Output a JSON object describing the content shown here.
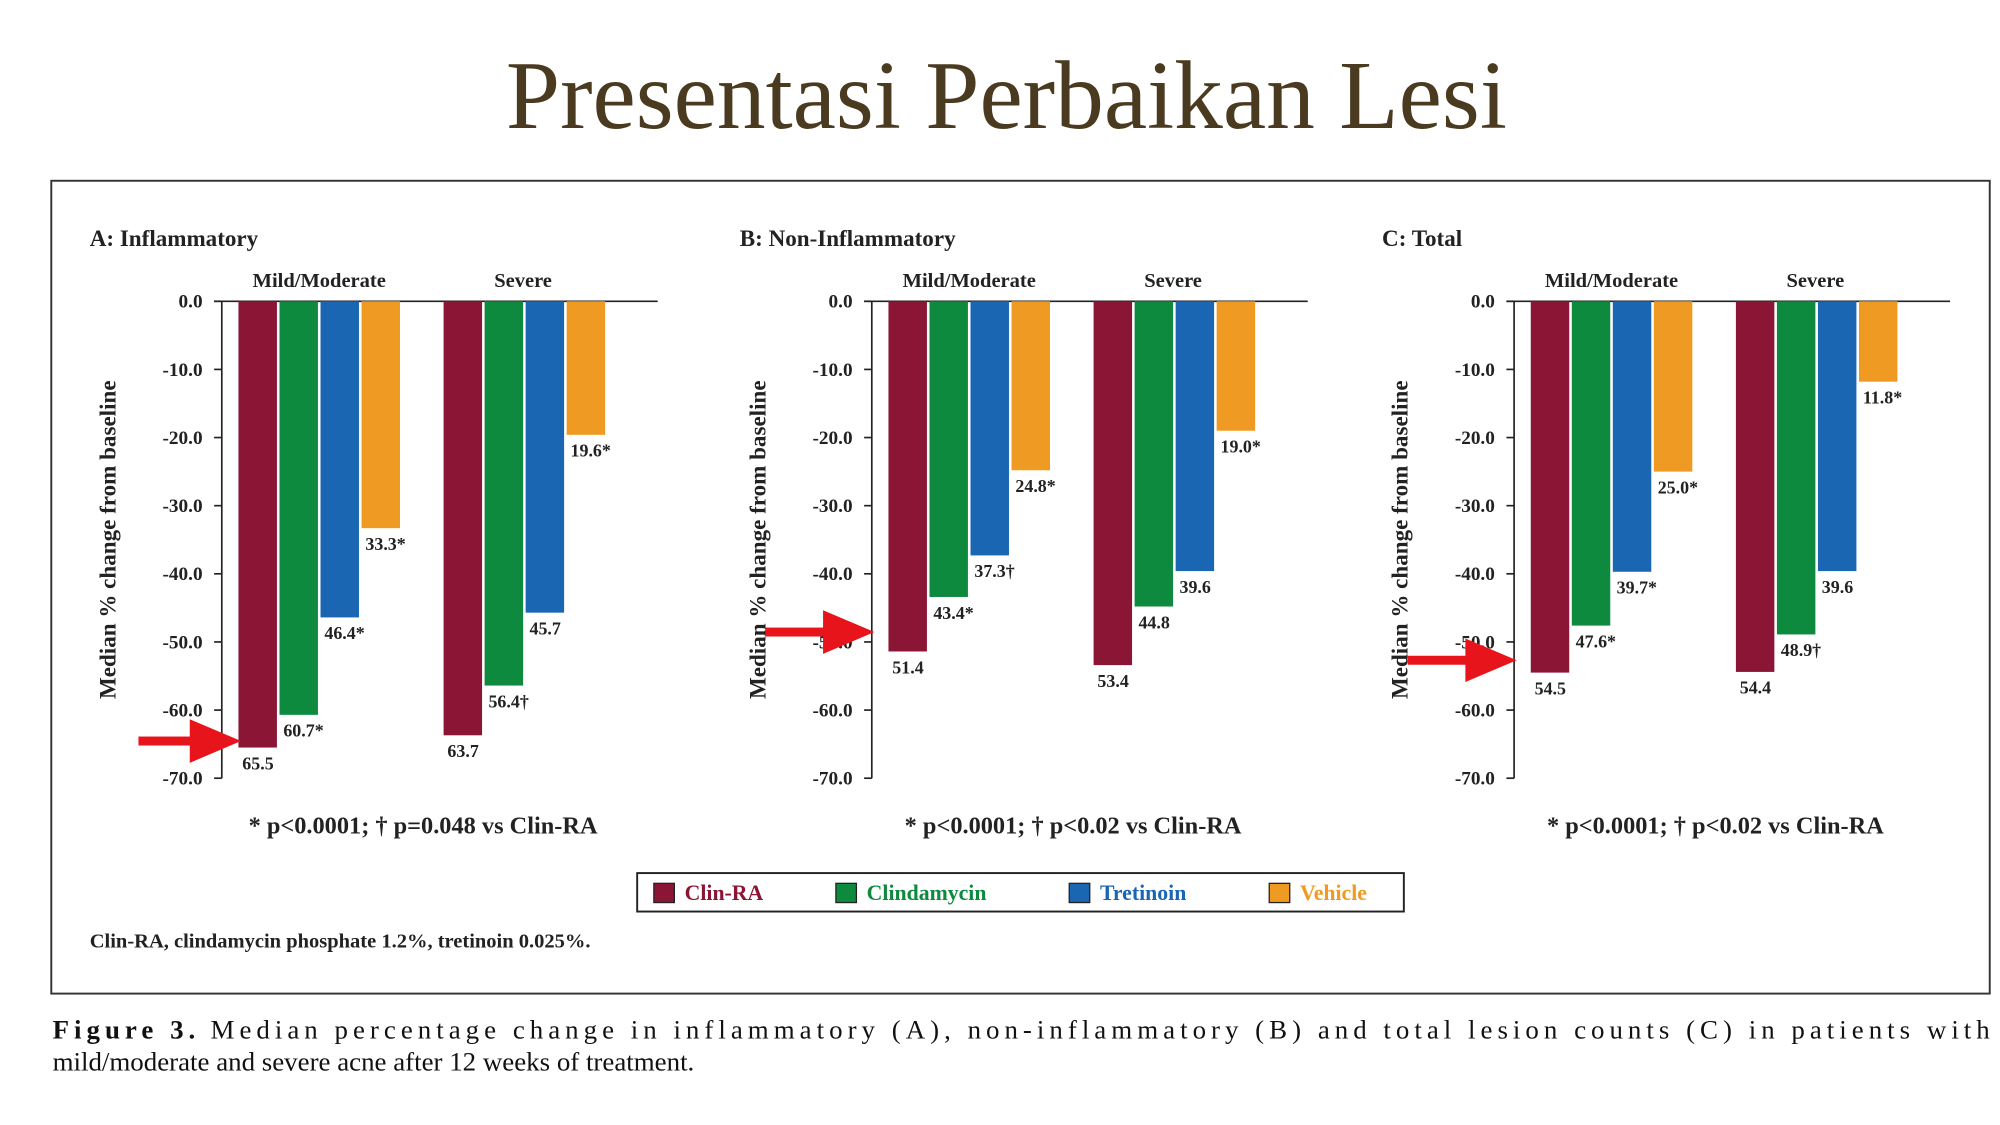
{
  "slide_title": "Presentasi Perbaikan Lesi",
  "colors": {
    "Clin-RA": "#8b1535",
    "Clindamycin": "#0e8a3f",
    "Tretinoin": "#1a66b3",
    "Vehicle": "#ef9a22",
    "title": "#4a3a1f"
  },
  "chart_data": [
    {
      "type": "bar",
      "title": "A: Inflammatory",
      "ylabel": "Median % change from baseline",
      "ylim": [
        -70,
        0
      ],
      "yticks": [
        "0.0",
        "-10.0",
        "-20.0",
        "-30.0",
        "-40.0",
        "-50.0",
        "-60.0",
        "-70.0"
      ],
      "categories": [
        "Mild/Moderate",
        "Severe"
      ],
      "series": [
        {
          "name": "Clin-RA",
          "values": [
            -65.5,
            -63.7
          ],
          "labels": [
            "65.5",
            "63.7"
          ]
        },
        {
          "name": "Clindamycin",
          "values": [
            -60.7,
            -56.4
          ],
          "labels": [
            "60.7*",
            "56.4†"
          ]
        },
        {
          "name": "Tretinoin",
          "values": [
            -46.4,
            -45.7
          ],
          "labels": [
            "46.4*",
            "45.7"
          ]
        },
        {
          "name": "Vehicle",
          "values": [
            -33.3,
            -19.6
          ],
          "labels": [
            "33.3*",
            "19.6*"
          ]
        }
      ],
      "footnote": "* p<0.0001; † p=0.048 vs Clin-RA"
    },
    {
      "type": "bar",
      "title": "B: Non-Inflammatory",
      "ylabel": "Median % change from baseline",
      "ylim": [
        -70,
        0
      ],
      "yticks": [
        "0.0",
        "-10.0",
        "-20.0",
        "-30.0",
        "-40.0",
        "-50.0",
        "-60.0",
        "-70.0"
      ],
      "categories": [
        "Mild/Moderate",
        "Severe"
      ],
      "series": [
        {
          "name": "Clin-RA",
          "values": [
            -51.4,
            -53.4
          ],
          "labels": [
            "51.4",
            "53.4"
          ]
        },
        {
          "name": "Clindamycin",
          "values": [
            -43.4,
            -44.8
          ],
          "labels": [
            "43.4*",
            "44.8"
          ]
        },
        {
          "name": "Tretinoin",
          "values": [
            -37.3,
            -39.6
          ],
          "labels": [
            "37.3†",
            "39.6"
          ]
        },
        {
          "name": "Vehicle",
          "values": [
            -24.8,
            -19.0
          ],
          "labels": [
            "24.8*",
            "19.0*"
          ]
        }
      ],
      "footnote": "* p<0.0001; † p<0.02 vs Clin-RA"
    },
    {
      "type": "bar",
      "title": "C: Total",
      "ylabel": "Median % change from baseline",
      "ylim": [
        -70,
        0
      ],
      "yticks": [
        "0.0",
        "-10.0",
        "-20.0",
        "-30.0",
        "-40.0",
        "-50.0",
        "-60.0",
        "-70.0"
      ],
      "categories": [
        "Mild/Moderate",
        "Severe"
      ],
      "series": [
        {
          "name": "Clin-RA",
          "values": [
            -54.5,
            -54.4
          ],
          "labels": [
            "54.5",
            "54.4"
          ]
        },
        {
          "name": "Clindamycin",
          "values": [
            -47.6,
            -48.9
          ],
          "labels": [
            "47.6*",
            "48.9†"
          ]
        },
        {
          "name": "Tretinoin",
          "values": [
            -39.7,
            -39.6
          ],
          "labels": [
            "39.7*",
            "39.6"
          ]
        },
        {
          "name": "Vehicle",
          "values": [
            -25.0,
            -11.8
          ],
          "labels": [
            "25.0*",
            "11.8*"
          ]
        }
      ],
      "footnote": "* p<0.0001; † p<0.02 vs Clin-RA"
    }
  ],
  "legend": [
    "Clin-RA",
    "Clindamycin",
    "Tretinoin",
    "Vehicle"
  ],
  "abbreviation_note": "Clin-RA, clindamycin phosphate 1.2%, tretinoin 0.025%.",
  "caption": {
    "label": "Figure 3.",
    "line1": "Median percentage change in inflammatory (A), non-inflammatory (B) and total lesion counts (C) in patients with",
    "line2": "mild/moderate and severe acne after 12 weeks of treatment."
  }
}
